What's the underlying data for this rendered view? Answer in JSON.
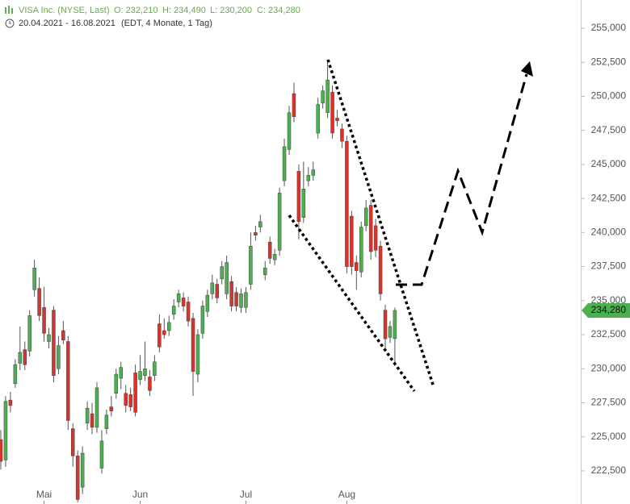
{
  "header": {
    "instrument": "VISA Inc. (NYSE, Last)",
    "open": "O: 232,210",
    "high": "H: 234,490",
    "low": "L: 230,200",
    "close": "C: 234,280",
    "range": "20.04.2021 - 16.08.2021",
    "info": "(EDT, 4 Monate, 1 Tag)"
  },
  "chart_data": {
    "type": "candlestick",
    "categories": [
      null,
      null,
      null,
      null,
      null,
      null,
      null,
      null,
      null,
      "Mai",
      null,
      null,
      null,
      null,
      null,
      null,
      null,
      null,
      null,
      null,
      null,
      null,
      null,
      null,
      null,
      null,
      null,
      null,
      null,
      "Jun",
      null,
      null,
      null,
      null,
      null,
      null,
      null,
      null,
      null,
      null,
      null,
      null,
      null,
      null,
      null,
      null,
      null,
      null,
      null,
      null,
      null,
      "Jul",
      null,
      null,
      null,
      null,
      null,
      null,
      null,
      null,
      null,
      null,
      null,
      null,
      null,
      null,
      null,
      null,
      null,
      null,
      null,
      null,
      "Aug",
      null,
      null,
      null,
      null,
      null,
      null,
      null,
      null,
      null,
      null
    ],
    "open": [
      224.8,
      223.3,
      227.7,
      228.9,
      230.4,
      231.4,
      231.3,
      235.8,
      235.9,
      234.5,
      232.0,
      234.3,
      230.0,
      232.8,
      232.0,
      225.6,
      223.6,
      221.3,
      226.0,
      226.7,
      225.7,
      222.7,
      225.6,
      227.2,
      228.2,
      229.3,
      228.2,
      228.1,
      229.7,
      229.2,
      229.5,
      229.4,
      229.5,
      233.3,
      232.8,
      232.8,
      234.0,
      234.9,
      235.2,
      234.9,
      233.7,
      229.6,
      232.6,
      234.2,
      235.5,
      236.2,
      236.6,
      235.5,
      236.4,
      235.6,
      234.5,
      234.5,
      236.2,
      240.0,
      240.4,
      236.9,
      239.3,
      238.0,
      238.7,
      243.8,
      246.1,
      250.2,
      244.5,
      241.1,
      243.8,
      244.2,
      247.3,
      249.5,
      248.8,
      250.3,
      248.4,
      247.6,
      246.7,
      241.2,
      237.8,
      237.1,
      240.5,
      242.0,
      240.5,
      239.0,
      234.3,
      232.3,
      232.21
    ],
    "high": [
      225.5,
      228.0,
      228.3,
      230.7,
      233.1,
      232.0,
      234.3,
      238.0,
      236.7,
      236.0,
      233.0,
      234.6,
      232.4,
      233.5,
      232.4,
      226.0,
      224.0,
      224.3,
      227.6,
      227.5,
      229.0,
      225.5,
      227.0,
      228.0,
      230.0,
      230.5,
      228.8,
      228.6,
      230.3,
      231.0,
      232.0,
      229.9,
      231.0,
      234.0,
      233.7,
      233.9,
      235.1,
      235.8,
      235.6,
      235.3,
      234.1,
      232.9,
      235.0,
      235.8,
      236.9,
      236.6,
      237.9,
      238.3,
      236.8,
      236.0,
      235.9,
      236.0,
      240.0,
      240.5,
      241.3,
      237.9,
      239.7,
      238.8,
      243.3,
      246.9,
      249.3,
      251.0,
      245.0,
      245.2,
      244.8,
      245.2,
      249.9,
      250.8,
      252.5,
      250.8,
      249.0,
      248.0,
      247.1,
      241.6,
      238.3,
      240.8,
      242.4,
      242.4,
      241.0,
      239.4,
      234.7,
      233.5,
      234.49
    ],
    "low": [
      222.6,
      222.8,
      226.8,
      228.6,
      229.9,
      229.9,
      230.9,
      235.3,
      233.5,
      232.0,
      231.5,
      229.0,
      229.6,
      231.8,
      225.5,
      222.8,
      220.2,
      220.8,
      225.5,
      225.2,
      225.3,
      222.3,
      225.2,
      226.5,
      227.8,
      228.5,
      226.8,
      226.9,
      226.5,
      228.8,
      229.1,
      228.0,
      229.1,
      231.2,
      232.2,
      232.4,
      233.6,
      234.5,
      234.2,
      233.1,
      228.0,
      229.0,
      232.2,
      233.8,
      235.1,
      234.8,
      236.2,
      235.1,
      234.2,
      234.2,
      234.1,
      234.1,
      235.8,
      239.4,
      240.0,
      236.5,
      237.7,
      237.6,
      238.3,
      243.4,
      245.7,
      248.1,
      239.5,
      240.7,
      243.4,
      243.8,
      246.9,
      249.1,
      248.4,
      246.9,
      247.8,
      246.2,
      237.0,
      236.9,
      235.8,
      236.7,
      240.1,
      238.0,
      238.2,
      235.0,
      231.5,
      231.9,
      230.2
    ],
    "close": [
      223.2,
      227.6,
      227.3,
      230.3,
      231.2,
      230.3,
      233.9,
      237.4,
      233.9,
      232.6,
      232.5,
      229.5,
      231.7,
      232.1,
      226.2,
      223.6,
      220.4,
      223.8,
      227.1,
      225.7,
      228.6,
      224.7,
      226.6,
      226.9,
      229.6,
      230.1,
      227.3,
      227.2,
      226.8,
      229.8,
      230.0,
      228.4,
      230.5,
      231.6,
      232.5,
      233.4,
      234.6,
      235.5,
      234.6,
      233.5,
      229.8,
      232.5,
      234.6,
      235.4,
      236.3,
      235.2,
      237.5,
      237.8,
      234.6,
      234.6,
      235.5,
      235.6,
      239.0,
      239.8,
      240.8,
      237.4,
      238.1,
      238.4,
      242.9,
      246.3,
      248.8,
      248.5,
      240.8,
      243.2,
      244.2,
      244.6,
      249.4,
      250.4,
      251.2,
      247.3,
      248.2,
      246.7,
      237.5,
      237.5,
      237.2,
      240.4,
      241.8,
      238.6,
      238.7,
      235.5,
      232.2,
      233.1,
      234.28
    ],
    "up_color": "#4caf50",
    "down_color": "#d9342b",
    "ylim": [
      220.07,
      257.07
    ],
    "yticks": [
      {
        "value": 222.5,
        "label": "222,500"
      },
      {
        "value": 225,
        "label": "225,000"
      },
      {
        "value": 227.5,
        "label": "227,500"
      },
      {
        "value": 230,
        "label": "230,000"
      },
      {
        "value": 232.5,
        "label": "232,500"
      },
      {
        "value": 235,
        "label": "235,000"
      },
      {
        "value": 237.5,
        "label": "237,500"
      },
      {
        "value": 240,
        "label": "240,000"
      },
      {
        "value": 242.5,
        "label": "242,500"
      },
      {
        "value": 245,
        "label": "245,000"
      },
      {
        "value": 247.5,
        "label": "247,500"
      },
      {
        "value": 250,
        "label": "250,000"
      },
      {
        "value": 252.5,
        "label": "252,500"
      },
      {
        "value": 255,
        "label": "255,000"
      }
    ],
    "last_price": {
      "value": 234.28,
      "label": "234,280"
    }
  }
}
